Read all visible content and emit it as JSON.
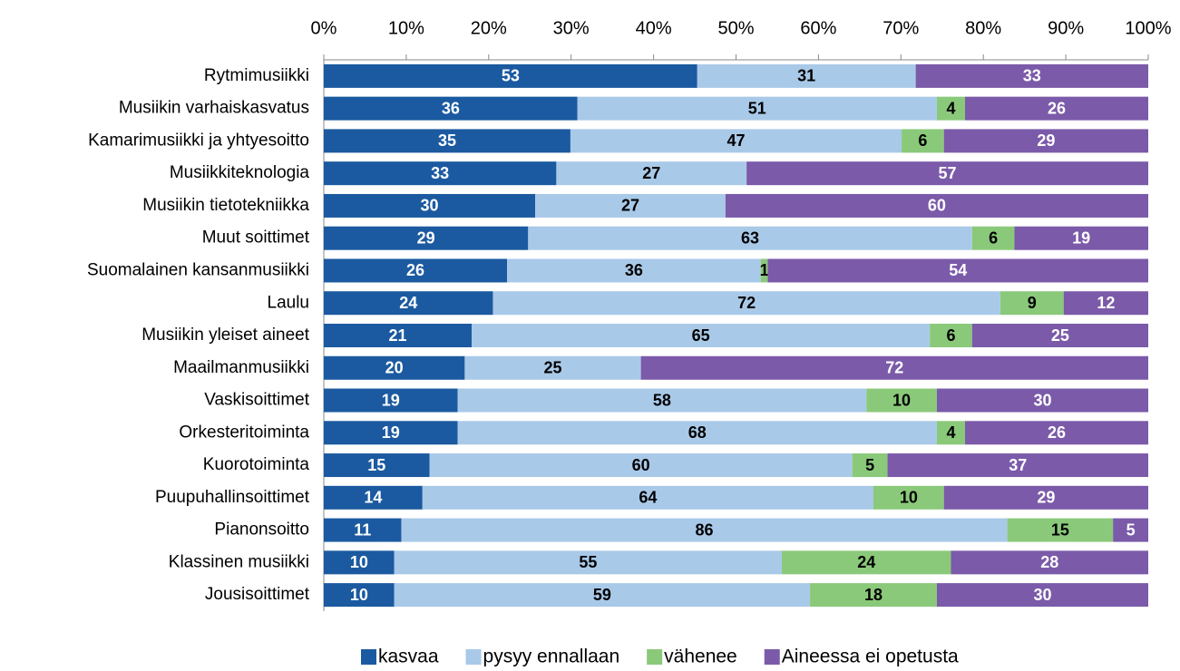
{
  "chart_data": {
    "type": "bar",
    "orientation": "horizontal",
    "stacking": "percent",
    "categories": [
      "Rytmimusiikki",
      "Musiikin varhaiskasvatus",
      "Kamarimusiikki ja yhtyesoitto",
      "Musiikkiteknologia",
      "Musiikin tietotekniikka",
      "Muut soittimet",
      "Suomalainen kansanmusiikki",
      "Laulu",
      "Musiikin yleiset aineet",
      "Maailmanmusiikki",
      "Vaskisoittimet ",
      "Orkesteritoiminta",
      "Kuorotoiminta",
      "Puupuhallinsoittimet",
      "Pianonsoitto",
      "Klassinen musiikki",
      "Jousisoittimet"
    ],
    "series": [
      {
        "name": "kasvaa",
        "color": "#1b5aa0",
        "label_color": "#ffffff",
        "values": [
          53,
          36,
          35,
          33,
          30,
          29,
          26,
          24,
          21,
          20,
          19,
          19,
          15,
          14,
          11,
          10,
          10
        ]
      },
      {
        "name": "pysyy ennallaan",
        "color": "#a9c9e8",
        "label_color": "#000000",
        "values": [
          31,
          51,
          47,
          27,
          27,
          63,
          36,
          72,
          65,
          25,
          58,
          68,
          60,
          64,
          86,
          55,
          59
        ]
      },
      {
        "name": "vähenee",
        "color": "#8ac97a",
        "label_color": "#000000",
        "values": [
          0,
          4,
          6,
          0,
          0,
          6,
          1,
          9,
          6,
          0,
          10,
          4,
          5,
          10,
          15,
          24,
          18
        ]
      },
      {
        "name": "Aineessa ei opetusta",
        "color": "#7b5aa9",
        "label_color": "#ffffff",
        "values": [
          33,
          26,
          29,
          57,
          60,
          19,
          54,
          12,
          25,
          72,
          30,
          26,
          37,
          29,
          5,
          28,
          30
        ]
      }
    ],
    "xlim": [
      0,
      100
    ],
    "xticks": [
      {
        "value": 0,
        "label": "0%"
      },
      {
        "value": 10,
        "label": "10%"
      },
      {
        "value": 20,
        "label": "20%"
      },
      {
        "value": 30,
        "label": "30%"
      },
      {
        "value": 40,
        "label": "40%"
      },
      {
        "value": 50,
        "label": "50%"
      },
      {
        "value": 60,
        "label": "60%"
      },
      {
        "value": 70,
        "label": "70%"
      },
      {
        "value": 80,
        "label": "80%"
      },
      {
        "value": 90,
        "label": "90%"
      },
      {
        "value": 100,
        "label": "100%"
      }
    ],
    "legend": "bottom"
  }
}
